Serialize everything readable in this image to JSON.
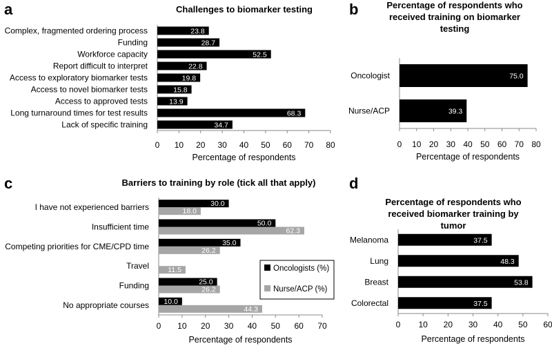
{
  "panel_letters": {
    "a": "a",
    "b": "b",
    "c": "c",
    "d": "d"
  },
  "chart_data": [
    {
      "id": "a",
      "type": "bar",
      "orientation": "horizontal",
      "title": "Challenges to biomarker testing",
      "categories": [
        "Complex, fragmented ordering process",
        "Funding",
        "Workforce capacity",
        "Report difficult to interpret",
        "Access to exploratory biomarker tests",
        "Access to novel biomarker tests",
        "Access to approved tests",
        "Long turnaround times for test results",
        "Lack of specific training"
      ],
      "values": [
        23.8,
        28.7,
        52.5,
        22.8,
        19.8,
        15.8,
        13.9,
        68.3,
        34.7
      ],
      "labels": [
        "23.8",
        "28.7",
        "52.5",
        "22.8",
        "19.8",
        "15.8",
        "13.9",
        "68.3",
        "34.7"
      ],
      "xlabel": "Percentage of respondents",
      "xlim": [
        0,
        80
      ],
      "xticks": [
        "0",
        "10",
        "20",
        "30",
        "40",
        "50",
        "60",
        "70",
        "80"
      ],
      "color": "#000000"
    },
    {
      "id": "b",
      "type": "bar",
      "orientation": "horizontal",
      "title": [
        "Percentage of respondents who",
        "received training on biomarker",
        "testing"
      ],
      "categories": [
        "Oncologist",
        "Nurse/ACP"
      ],
      "values": [
        75.0,
        39.3
      ],
      "labels": [
        "75.0",
        "39.3"
      ],
      "xlabel": "Percentage of respondents",
      "xlim": [
        0,
        80
      ],
      "xticks": [
        "0",
        "10",
        "20",
        "30",
        "40",
        "50",
        "60",
        "70",
        "80"
      ],
      "color": "#000000"
    },
    {
      "id": "c",
      "type": "bar",
      "orientation": "horizontal",
      "title": "Barriers to training by role (tick all that apply)",
      "categories": [
        "I have not experienced barriers",
        "Insufficient time",
        "Competing priorities for CME/CPD time",
        "Travel",
        "Funding",
        "No appropriate courses"
      ],
      "series": [
        {
          "name": "Oncologists (%)",
          "color": "#000000",
          "values": [
            30.0,
            50.0,
            35.0,
            null,
            25.0,
            10.0
          ],
          "labels": [
            "30.0",
            "50.0",
            "35.0",
            "",
            "25.0",
            "10.0"
          ]
        },
        {
          "name": "Nurse/ACP (%)",
          "color": "#a6a6a6",
          "values": [
            18.0,
            62.3,
            26.2,
            11.5,
            26.2,
            44.3
          ],
          "labels": [
            "18.0",
            "62.3",
            "26.2",
            "11.5",
            "26.2",
            "44.3"
          ]
        }
      ],
      "legend": "center-right",
      "xlabel": "Percentage of respondents",
      "xlim": [
        0,
        70
      ],
      "xticks": [
        "0",
        "10",
        "20",
        "30",
        "40",
        "50",
        "60",
        "70"
      ]
    },
    {
      "id": "d",
      "type": "bar",
      "orientation": "horizontal",
      "title": [
        "Percentage of respondents who",
        "received biomarker training by",
        "tumor"
      ],
      "categories": [
        "Melanoma",
        "Lung",
        "Breast",
        "Colorectal"
      ],
      "values": [
        37.5,
        48.3,
        53.8,
        37.5
      ],
      "labels": [
        "37.5",
        "48.3",
        "53.8",
        "37.5"
      ],
      "xlabel": "Percentage of respondents",
      "xlim": [
        0,
        60
      ],
      "xticks": [
        "0",
        "10",
        "20",
        "30",
        "40",
        "50",
        "60"
      ],
      "color": "#000000"
    }
  ]
}
